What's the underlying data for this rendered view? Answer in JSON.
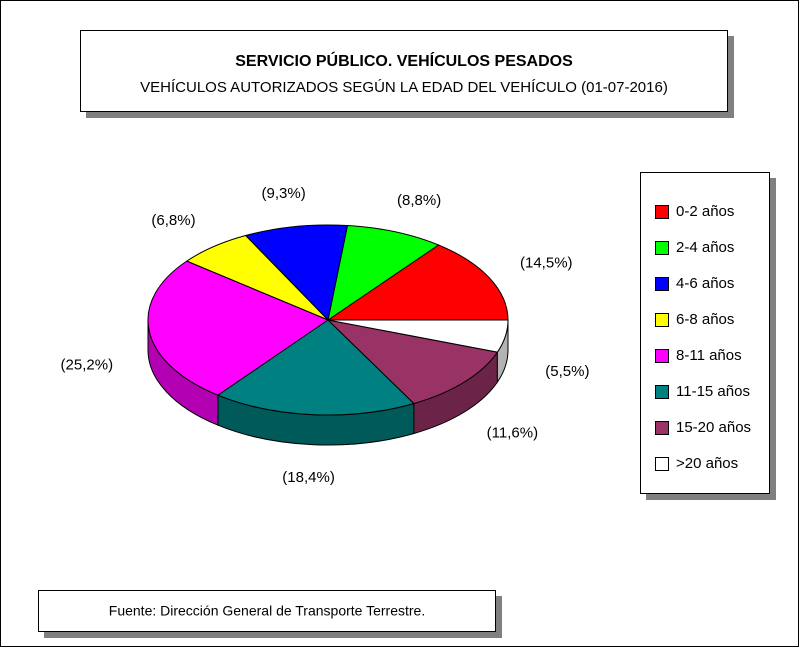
{
  "chart_data": {
    "type": "pie",
    "title": "SERVICIO PÚBLICO. VEHÍCULOS PESADOS",
    "subtitle": "VEHÍCULOS AUTORIZADOS SEGÚN LA EDAD DEL VEHÍCULO (01-07-2016)",
    "categories": [
      "0-2 años",
      "2-4 años",
      "4-6 años",
      "6-8 años",
      "8-11 años",
      "11-15 años",
      "15-20 años",
      ">20 años"
    ],
    "values": [
      14.5,
      8.8,
      9.3,
      6.8,
      25.2,
      18.4,
      11.6,
      5.5
    ],
    "value_labels": [
      "(14,5%)",
      "(8,8%)",
      "(9,3%)",
      "(6,8%)",
      "(25,2%)",
      "(18,4%)",
      "(11,6%)",
      "(5,5%)"
    ],
    "colors": [
      "#ff0000",
      "#00ff00",
      "#0000ff",
      "#ffff00",
      "#ff00ff",
      "#008080",
      "#993366",
      "#ffffff"
    ],
    "legend": "right",
    "source": "Fuente: Dirección General de Transporte Terrestre."
  }
}
